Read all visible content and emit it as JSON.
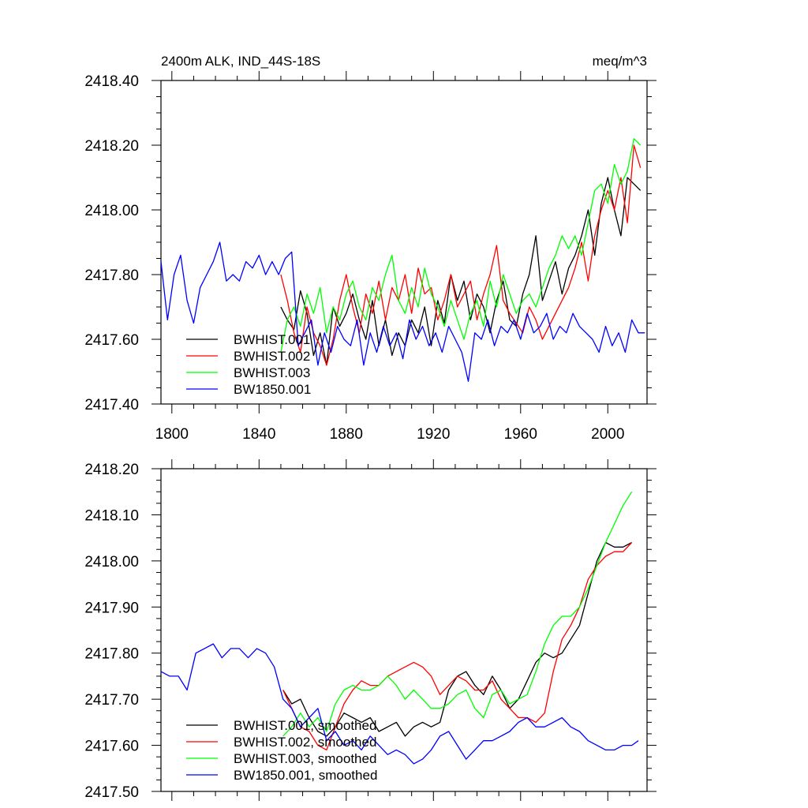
{
  "chart_data": [
    {
      "type": "line",
      "title": "2400m ALK, IND_44S-18S",
      "units": "meq/m^3",
      "xlim": [
        1795,
        2018
      ],
      "ylim": [
        2417.4,
        2418.4
      ],
      "xticks": [
        1800,
        1840,
        1880,
        1920,
        1960,
        2000
      ],
      "xtick_labels": [
        "1800",
        "1840",
        "1880",
        "1920",
        "1960",
        "2000"
      ],
      "yticks": [
        2417.4,
        2417.6,
        2417.8,
        2418.0,
        2418.2,
        2418.4
      ],
      "ytick_labels": [
        "2417.40",
        "2417.60",
        "2417.80",
        "2418.00",
        "2418.20",
        "2418.40"
      ],
      "grid": false,
      "legend": "bottom-left",
      "series": [
        {
          "name": "BWHIST.001",
          "color": "#000000",
          "x": [
            1850,
            1853,
            1856,
            1859,
            1862,
            1865,
            1868,
            1871,
            1874,
            1877,
            1880,
            1883,
            1886,
            1889,
            1892,
            1895,
            1898,
            1901,
            1904,
            1907,
            1910,
            1913,
            1916,
            1919,
            1922,
            1925,
            1928,
            1931,
            1934,
            1937,
            1940,
            1943,
            1946,
            1949,
            1952,
            1955,
            1958,
            1961,
            1964,
            1967,
            1970,
            1973,
            1976,
            1979,
            1982,
            1985,
            1988,
            1991,
            1994,
            1997,
            2000,
            2003,
            2006,
            2009,
            2012,
            2015
          ],
          "y": [
            2417.7,
            2417.66,
            2417.63,
            2417.75,
            2417.68,
            2417.55,
            2417.62,
            2417.52,
            2417.7,
            2417.64,
            2417.68,
            2417.74,
            2417.66,
            2417.6,
            2417.72,
            2417.58,
            2417.66,
            2417.55,
            2417.62,
            2417.58,
            2417.66,
            2417.62,
            2417.7,
            2417.58,
            2417.72,
            2417.65,
            2417.8,
            2417.72,
            2417.78,
            2417.66,
            2417.74,
            2417.7,
            2417.62,
            2417.72,
            2417.78,
            2417.66,
            2417.64,
            2417.74,
            2417.8,
            2417.92,
            2417.72,
            2417.78,
            2417.84,
            2417.74,
            2417.82,
            2417.86,
            2417.92,
            2418.0,
            2417.86,
            2418.02,
            2418.1,
            2418.0,
            2417.92,
            2418.1,
            2418.08,
            2418.06
          ]
        },
        {
          "name": "BWHIST.002",
          "color": "#ff0000",
          "x": [
            1850,
            1853,
            1856,
            1859,
            1862,
            1865,
            1868,
            1871,
            1874,
            1877,
            1880,
            1883,
            1886,
            1889,
            1892,
            1895,
            1898,
            1901,
            1904,
            1907,
            1910,
            1913,
            1916,
            1919,
            1922,
            1925,
            1928,
            1931,
            1934,
            1937,
            1940,
            1943,
            1946,
            1949,
            1952,
            1955,
            1958,
            1961,
            1964,
            1967,
            1970,
            1973,
            1976,
            1979,
            1982,
            1985,
            1988,
            1991,
            1994,
            1997,
            2000,
            2003,
            2006,
            2009,
            2012,
            2015
          ],
          "y": [
            2417.8,
            2417.72,
            2417.62,
            2417.56,
            2417.7,
            2417.62,
            2417.58,
            2417.52,
            2417.6,
            2417.72,
            2417.8,
            2417.7,
            2417.62,
            2417.74,
            2417.68,
            2417.78,
            2417.66,
            2417.76,
            2417.72,
            2417.8,
            2417.68,
            2417.82,
            2417.74,
            2417.76,
            2417.66,
            2417.72,
            2417.8,
            2417.7,
            2417.74,
            2417.78,
            2417.66,
            2417.74,
            2417.8,
            2417.89,
            2417.72,
            2417.68,
            2417.65,
            2417.62,
            2417.7,
            2417.66,
            2417.6,
            2417.64,
            2417.68,
            2417.72,
            2417.76,
            2417.82,
            2417.9,
            2417.78,
            2417.92,
            2418.0,
            2418.06,
            2418.0,
            2418.1,
            2417.96,
            2418.2,
            2418.13
          ]
        },
        {
          "name": "BWHIST.003",
          "color": "#00ff00",
          "x": [
            1850,
            1853,
            1856,
            1859,
            1862,
            1865,
            1868,
            1871,
            1874,
            1877,
            1880,
            1883,
            1886,
            1889,
            1892,
            1895,
            1898,
            1901,
            1904,
            1907,
            1910,
            1913,
            1916,
            1919,
            1922,
            1925,
            1928,
            1931,
            1934,
            1937,
            1940,
            1943,
            1946,
            1949,
            1952,
            1955,
            1958,
            1961,
            1964,
            1967,
            1970,
            1973,
            1976,
            1979,
            1982,
            1985,
            1988,
            1991,
            1994,
            1997,
            2000,
            2003,
            2006,
            2009,
            2012,
            2015
          ],
          "y": [
            2417.56,
            2417.66,
            2417.7,
            2417.64,
            2417.74,
            2417.68,
            2417.76,
            2417.62,
            2417.7,
            2417.66,
            2417.74,
            2417.78,
            2417.7,
            2417.66,
            2417.76,
            2417.72,
            2417.8,
            2417.86,
            2417.72,
            2417.68,
            2417.76,
            2417.7,
            2417.82,
            2417.74,
            2417.7,
            2417.64,
            2417.72,
            2417.66,
            2417.6,
            2417.68,
            2417.72,
            2417.64,
            2417.78,
            2417.7,
            2417.8,
            2417.74,
            2417.68,
            2417.72,
            2417.74,
            2417.7,
            2417.76,
            2417.82,
            2417.86,
            2417.92,
            2417.88,
            2417.92,
            2417.86,
            2417.96,
            2418.06,
            2418.08,
            2418.02,
            2418.14,
            2418.08,
            2418.12,
            2418.22,
            2418.2
          ]
        },
        {
          "name": "BW1850.001",
          "color": "#0000ff",
          "x": [
            1795,
            1798,
            1801,
            1804,
            1807,
            1810,
            1813,
            1816,
            1819,
            1822,
            1825,
            1828,
            1831,
            1834,
            1837,
            1840,
            1843,
            1846,
            1849,
            1852,
            1855,
            1858,
            1861,
            1864,
            1867,
            1870,
            1873,
            1876,
            1879,
            1882,
            1885,
            1888,
            1891,
            1894,
            1897,
            1900,
            1903,
            1906,
            1909,
            1912,
            1915,
            1918,
            1921,
            1924,
            1927,
            1930,
            1933,
            1936,
            1939,
            1942,
            1945,
            1948,
            1951,
            1954,
            1957,
            1960,
            1963,
            1966,
            1969,
            1972,
            1975,
            1978,
            1981,
            1984,
            1987,
            1990,
            1993,
            1996,
            1999,
            2002,
            2005,
            2008,
            2011,
            2014,
            2017
          ],
          "y": [
            2417.84,
            2417.66,
            2417.8,
            2417.86,
            2417.72,
            2417.65,
            2417.76,
            2417.8,
            2417.84,
            2417.9,
            2417.78,
            2417.8,
            2417.78,
            2417.84,
            2417.82,
            2417.86,
            2417.8,
            2417.84,
            2417.8,
            2417.85,
            2417.87,
            2417.58,
            2417.62,
            2417.66,
            2417.52,
            2417.62,
            2417.56,
            2417.64,
            2417.6,
            2417.58,
            2417.66,
            2417.52,
            2417.62,
            2417.56,
            2417.64,
            2417.58,
            2417.62,
            2417.54,
            2417.66,
            2417.6,
            2417.64,
            2417.58,
            2417.62,
            2417.56,
            2417.64,
            2417.6,
            2417.56,
            2417.47,
            2417.62,
            2417.6,
            2417.66,
            2417.58,
            2417.64,
            2417.62,
            2417.66,
            2417.6,
            2417.68,
            2417.62,
            2417.64,
            2417.68,
            2417.6,
            2417.64,
            2417.62,
            2417.68,
            2417.64,
            2417.62,
            2417.6,
            2417.56,
            2417.64,
            2417.58,
            2417.62,
            2417.56,
            2417.66,
            2417.62,
            2417.62
          ]
        }
      ]
    },
    {
      "type": "line",
      "xlim": [
        1795,
        2018
      ],
      "ylim": [
        2417.5,
        2418.2
      ],
      "xticks": [
        1800,
        1840,
        1880,
        1920,
        1960,
        2000
      ],
      "yticks": [
        2417.5,
        2417.6,
        2417.7,
        2417.8,
        2417.9,
        2418.0,
        2418.1,
        2418.2
      ],
      "ytick_labels": [
        "2417.50",
        "2417.60",
        "2417.70",
        "2417.80",
        "2417.90",
        "2418.00",
        "2418.10",
        "2418.20"
      ],
      "grid": false,
      "legend": "bottom-left",
      "series": [
        {
          "name": "BWHIST.001, smoothed",
          "color": "#000000",
          "x": [
            1851,
            1855,
            1859,
            1863,
            1867,
            1871,
            1875,
            1879,
            1883,
            1887,
            1891,
            1895,
            1899,
            1903,
            1907,
            1911,
            1915,
            1919,
            1923,
            1927,
            1931,
            1935,
            1939,
            1943,
            1947,
            1951,
            1955,
            1959,
            1963,
            1967,
            1971,
            1975,
            1979,
            1983,
            1987,
            1991,
            1995,
            1999,
            2003,
            2007,
            2011
          ],
          "y": [
            2417.72,
            2417.69,
            2417.7,
            2417.66,
            2417.63,
            2417.62,
            2417.64,
            2417.67,
            2417.66,
            2417.65,
            2417.66,
            2417.63,
            2417.64,
            2417.65,
            2417.62,
            2417.64,
            2417.65,
            2417.64,
            2417.65,
            2417.72,
            2417.75,
            2417.76,
            2417.73,
            2417.71,
            2417.75,
            2417.72,
            2417.68,
            2417.7,
            2417.74,
            2417.78,
            2417.8,
            2417.79,
            2417.8,
            2417.83,
            2417.86,
            2417.93,
            2418.0,
            2418.04,
            2418.03,
            2418.03,
            2418.04
          ]
        },
        {
          "name": "BWHIST.002, smoothed",
          "color": "#ff0000",
          "x": [
            1851,
            1855,
            1859,
            1863,
            1867,
            1871,
            1875,
            1879,
            1883,
            1887,
            1891,
            1895,
            1899,
            1903,
            1907,
            1911,
            1915,
            1919,
            1923,
            1927,
            1931,
            1935,
            1939,
            1943,
            1947,
            1951,
            1955,
            1959,
            1963,
            1967,
            1971,
            1975,
            1979,
            1983,
            1987,
            1991,
            1995,
            1999,
            2003,
            2007,
            2011
          ],
          "y": [
            2417.72,
            2417.68,
            2417.64,
            2417.63,
            2417.6,
            2417.59,
            2417.64,
            2417.69,
            2417.72,
            2417.74,
            2417.73,
            2417.73,
            2417.75,
            2417.76,
            2417.77,
            2417.78,
            2417.77,
            2417.75,
            2417.71,
            2417.73,
            2417.75,
            2417.74,
            2417.72,
            2417.72,
            2417.74,
            2417.7,
            2417.68,
            2417.66,
            2417.66,
            2417.65,
            2417.67,
            2417.76,
            2417.83,
            2417.86,
            2417.9,
            2417.96,
            2417.99,
            2418.01,
            2418.02,
            2418.02,
            2418.04
          ]
        },
        {
          "name": "BWHIST.003, smoothed",
          "color": "#00ff00",
          "x": [
            1851,
            1855,
            1859,
            1863,
            1867,
            1871,
            1875,
            1879,
            1883,
            1887,
            1891,
            1895,
            1899,
            1903,
            1907,
            1911,
            1915,
            1919,
            1923,
            1927,
            1931,
            1935,
            1939,
            1943,
            1947,
            1951,
            1955,
            1959,
            1963,
            1967,
            1971,
            1975,
            1979,
            1983,
            1987,
            1991,
            1995,
            1999,
            2003,
            2007,
            2011
          ],
          "y": [
            2417.62,
            2417.64,
            2417.67,
            2417.64,
            2417.66,
            2417.63,
            2417.69,
            2417.72,
            2417.73,
            2417.72,
            2417.72,
            2417.73,
            2417.75,
            2417.73,
            2417.7,
            2417.72,
            2417.7,
            2417.68,
            2417.68,
            2417.69,
            2417.71,
            2417.72,
            2417.68,
            2417.66,
            2417.71,
            2417.72,
            2417.69,
            2417.7,
            2417.71,
            2417.76,
            2417.82,
            2417.86,
            2417.88,
            2417.88,
            2417.9,
            2417.94,
            2417.99,
            2418.04,
            2418.08,
            2418.12,
            2418.15
          ]
        },
        {
          "name": "BW1850.001, smoothed",
          "color": "#0000ff",
          "x": [
            1795,
            1799,
            1803,
            1807,
            1811,
            1815,
            1819,
            1823,
            1827,
            1831,
            1835,
            1839,
            1843,
            1847,
            1851,
            1855,
            1859,
            1863,
            1867,
            1871,
            1875,
            1879,
            1883,
            1887,
            1891,
            1895,
            1899,
            1903,
            1907,
            1911,
            1915,
            1919,
            1923,
            1927,
            1931,
            1935,
            1939,
            1943,
            1947,
            1951,
            1955,
            1959,
            1963,
            1967,
            1971,
            1975,
            1979,
            1983,
            1987,
            1991,
            1995,
            1999,
            2003,
            2007,
            2011,
            2014
          ],
          "y": [
            2417.76,
            2417.75,
            2417.75,
            2417.72,
            2417.8,
            2417.81,
            2417.82,
            2417.79,
            2417.81,
            2417.81,
            2417.79,
            2417.81,
            2417.8,
            2417.77,
            2417.7,
            2417.68,
            2417.64,
            2417.66,
            2417.68,
            2417.61,
            2417.63,
            2417.6,
            2417.61,
            2417.59,
            2417.62,
            2417.6,
            2417.58,
            2417.59,
            2417.58,
            2417.56,
            2417.57,
            2417.59,
            2417.62,
            2417.63,
            2417.6,
            2417.57,
            2417.59,
            2417.61,
            2417.61,
            2417.62,
            2417.63,
            2417.65,
            2417.66,
            2417.64,
            2417.64,
            2417.65,
            2417.66,
            2417.64,
            2417.63,
            2417.61,
            2417.6,
            2417.59,
            2417.59,
            2417.6,
            2417.6,
            2417.61
          ]
        }
      ]
    }
  ]
}
